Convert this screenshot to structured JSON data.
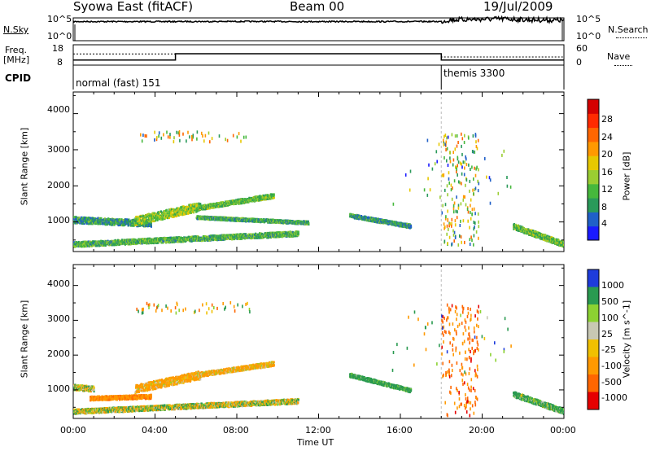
{
  "header": {
    "station": "Syowa East (fitACF)",
    "beam": "Beam 00",
    "date": "19/Jul/2009"
  },
  "control_panels": {
    "nsky_label": "N.Sky",
    "nsearch_label": "N.Search",
    "freq_label_1": "Freq.",
    "freq_label_2": "[MHz]",
    "nave_label": "Nave",
    "cpid_label": "CPID",
    "nsky_ticks": [
      "10^5",
      "10^0"
    ],
    "nsearch_ticks": [
      "10^5",
      "10^0"
    ],
    "freq_ticks": [
      "18",
      "8"
    ],
    "nave_ticks": [
      "60",
      "0"
    ],
    "cpid_segments": [
      {
        "label": "normal (fast) 151",
        "start_hr": 0,
        "end_hr": 18
      },
      {
        "label": "themis 3300",
        "start_hr": 18,
        "end_hr": 24
      }
    ]
  },
  "chart_data": [
    {
      "type": "line",
      "title": "",
      "ylabel": "N.Sky",
      "yscale": "log",
      "ylim": [
        1,
        100000
      ],
      "series": [
        {
          "values_x": [
            0,
            4,
            8,
            12,
            16,
            18,
            18.5,
            20,
            21,
            22,
            24
          ],
          "values_y": [
            30000,
            30000,
            32000,
            30000,
            30000,
            30000,
            90000,
            120000,
            150000,
            90000,
            60000
          ]
        }
      ]
    },
    {
      "type": "line",
      "title": "",
      "ylabel": "Freq. [MHz]",
      "ylim": [
        8,
        18
      ],
      "series": [
        {
          "values_x": [
            0,
            5,
            5,
            18,
            18,
            24
          ],
          "values_y": [
            10.5,
            10.5,
            13.6,
            13.6,
            10.5,
            10.5
          ]
        },
        {
          "values_x": [
            0,
            5,
            5,
            18,
            18,
            24
          ],
          "values_y": [
            13.5,
            13.5,
            13.6,
            13.6,
            12.0,
            12.0
          ]
        }
      ]
    },
    {
      "type": "scatter",
      "title": "",
      "xlabel": "Time UT",
      "ylabel": "Slant Range [km]",
      "xlim": [
        0,
        24
      ],
      "ylim": [
        180,
        4600
      ],
      "colorbar": {
        "label": "Power [dB]",
        "ticks": [
          "4",
          "8",
          "12",
          "16",
          "20",
          "24",
          "28"
        ],
        "range": [
          0,
          30
        ]
      },
      "echo_bands": [
        {
          "t0": 0.0,
          "t1": 3.8,
          "r0": 1080,
          "r1": 980,
          "width": 180,
          "value": 8
        },
        {
          "t0": 3.0,
          "t1": 6.2,
          "r0": 1050,
          "r1": 1450,
          "width": 240,
          "value": 13
        },
        {
          "t0": 6.0,
          "t1": 9.8,
          "r0": 1400,
          "r1": 1750,
          "width": 130,
          "value": 11
        },
        {
          "t0": 0.0,
          "t1": 11.0,
          "r0": 400,
          "r1": 700,
          "width": 140,
          "value": 10
        },
        {
          "t0": 6.0,
          "t1": 11.5,
          "r0": 1150,
          "r1": 1000,
          "width": 90,
          "value": 9
        },
        {
          "t0": 13.5,
          "t1": 16.5,
          "r0": 1200,
          "r1": 900,
          "width": 110,
          "value": 8
        },
        {
          "t0": 21.5,
          "t1": 24.0,
          "r0": 900,
          "r1": 400,
          "width": 160,
          "value": 11
        }
      ],
      "echo_clusters": [
        {
          "t0": 18.0,
          "t1": 19.8,
          "r0": 300,
          "r1": 3500,
          "count": 180,
          "value": 14
        },
        {
          "t0": 3.0,
          "t1": 8.6,
          "r0": 3250,
          "r1": 3550,
          "count": 50,
          "value": 14
        },
        {
          "t0": 15.5,
          "t1": 21.5,
          "r0": 1500,
          "r1": 3400,
          "count": 40,
          "value": 8
        }
      ]
    },
    {
      "type": "scatter",
      "title": "",
      "xlabel": "Time UT",
      "ylabel": "Slant Range [km]",
      "xlim": [
        0,
        24
      ],
      "ylim": [
        180,
        4600
      ],
      "colorbar": {
        "label": "Velocity [m s^-1]",
        "ticks": [
          "1000",
          "500",
          "100",
          "25",
          "-25",
          "-100",
          "-500",
          "-1000"
        ],
        "range": [
          -1000,
          1000
        ]
      },
      "echo_bands": [
        {
          "t0": 0.0,
          "t1": 1.0,
          "r0": 1100,
          "r1": 1050,
          "width": 160,
          "value": 0
        },
        {
          "t0": 0.8,
          "t1": 3.8,
          "r0": 780,
          "r1": 830,
          "width": 120,
          "value": -400
        },
        {
          "t0": 3.0,
          "t1": 6.2,
          "r0": 1050,
          "r1": 1450,
          "width": 240,
          "value": -200
        },
        {
          "t0": 6.0,
          "t1": 9.8,
          "r0": 1450,
          "r1": 1780,
          "width": 130,
          "value": -150
        },
        {
          "t0": 0.0,
          "t1": 11.0,
          "r0": 400,
          "r1": 700,
          "width": 140,
          "value": 0
        },
        {
          "t0": 13.5,
          "t1": 16.5,
          "r0": 1450,
          "r1": 1000,
          "width": 110,
          "value": 250
        },
        {
          "t0": 21.5,
          "t1": 24.0,
          "r0": 900,
          "r1": 400,
          "width": 160,
          "value": 200
        }
      ],
      "echo_clusters": [
        {
          "t0": 18.0,
          "t1": 19.8,
          "r0": 300,
          "r1": 3500,
          "count": 180,
          "value": -600
        },
        {
          "t0": 3.0,
          "t1": 8.6,
          "r0": 3250,
          "r1": 3550,
          "count": 50,
          "value": -200
        },
        {
          "t0": 15.5,
          "t1": 21.5,
          "r0": 1500,
          "r1": 3400,
          "count": 40,
          "value": 100
        }
      ]
    }
  ],
  "axes": {
    "x_ticks": [
      "00:00",
      "04:00",
      "08:00",
      "12:00",
      "16:00",
      "20:00",
      "00:00"
    ],
    "y_ticks": [
      "1000",
      "2000",
      "3000",
      "4000"
    ],
    "xlabel": "Time UT",
    "ylabel": "Slant Range [km]"
  },
  "colors": {
    "power_scale": [
      "#1a1aff",
      "#2060c8",
      "#2a9a5a",
      "#46b83c",
      "#9acd32",
      "#e6c800",
      "#ff9900",
      "#ff6600",
      "#ff2a00",
      "#d40000"
    ],
    "velocity_scale": [
      "#e60000",
      "#ff6600",
      "#ff9900",
      "#f0c000",
      "#c8c8b4",
      "#8cd232",
      "#2a9a50",
      "#1e3cdc"
    ]
  }
}
